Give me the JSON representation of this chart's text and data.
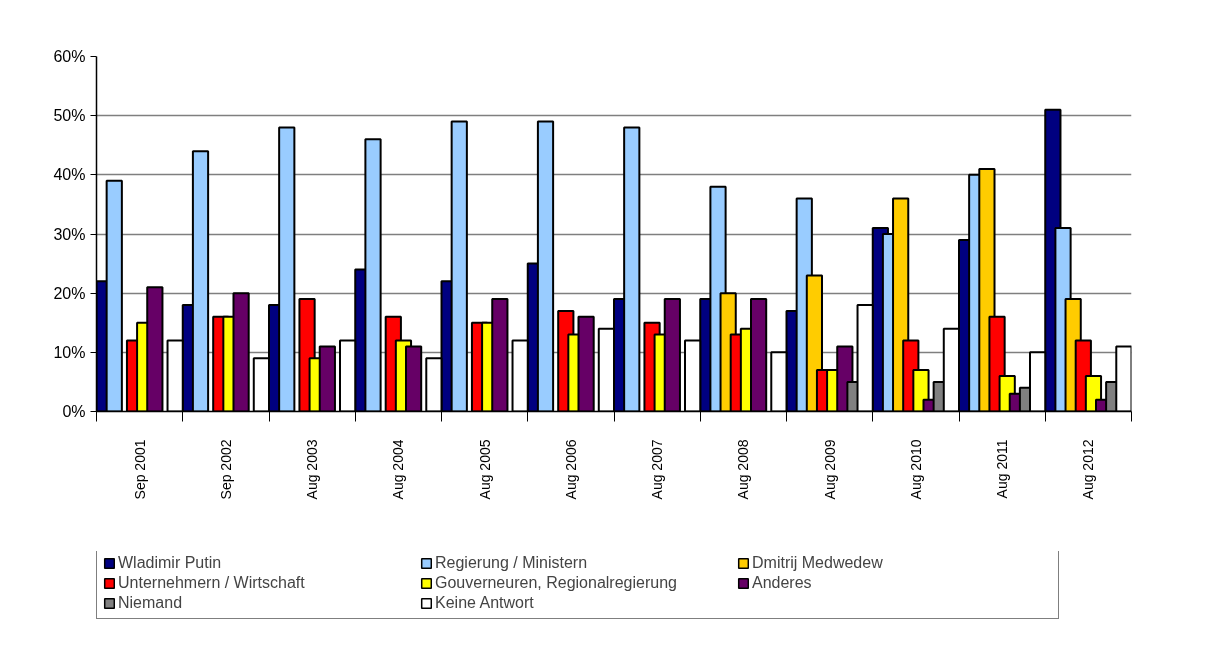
{
  "chart_data": {
    "type": "bar",
    "categories": [
      "Sep 2001",
      "Sep 2002",
      "Aug 2003",
      "Aug 2004",
      "Aug 2005",
      "Aug 2006",
      "Aug 2007",
      "Aug 2008",
      "Aug 2009",
      "Aug 2010",
      "Aug 2011",
      "Aug 2012"
    ],
    "series": [
      {
        "name": "Wladimir Putin",
        "color": "#000080",
        "values": [
          22,
          18,
          18,
          24,
          22,
          25,
          19,
          19,
          17,
          31,
          29,
          51
        ]
      },
      {
        "name": "Regierung / Ministern",
        "color": "#99ccff",
        "values": [
          39,
          44,
          48,
          46,
          49,
          49,
          48,
          38,
          36,
          30,
          40,
          31
        ]
      },
      {
        "name": "Dmitrij Medwedew",
        "color": "#ffcc00",
        "values": [
          null,
          null,
          null,
          null,
          null,
          null,
          null,
          20,
          23,
          36,
          41,
          19
        ]
      },
      {
        "name": "Unternehmern / Wirtschaft",
        "color": "#ff0000",
        "values": [
          12,
          16,
          19,
          16,
          15,
          17,
          15,
          13,
          7,
          12,
          16,
          12
        ]
      },
      {
        "name": "Gouverneuren, Regionalregierung",
        "color": "#ffff00",
        "values": [
          15,
          16,
          9,
          12,
          15,
          13,
          13,
          14,
          7,
          7,
          6,
          6
        ]
      },
      {
        "name": "Anderes",
        "color": "#660066",
        "values": [
          21,
          20,
          11,
          11,
          19,
          16,
          19,
          19,
          11,
          2,
          3,
          2
        ]
      },
      {
        "name": "Niemand",
        "color": "#808080",
        "values": [
          null,
          null,
          null,
          null,
          null,
          null,
          null,
          null,
          5,
          5,
          4,
          5
        ]
      },
      {
        "name": "Keine Antwort",
        "color": "#ffffff",
        "values": [
          12,
          9,
          12,
          9,
          12,
          14,
          12,
          10,
          18,
          14,
          10,
          11
        ]
      }
    ],
    "ylim": [
      0,
      60
    ],
    "yticks": [
      {
        "value": 0,
        "label": "0%"
      },
      {
        "value": 10,
        "label": "10%"
      },
      {
        "value": 20,
        "label": "20%"
      },
      {
        "value": 30,
        "label": "30%"
      },
      {
        "value": 40,
        "label": "40%"
      },
      {
        "value": 50,
        "label": "50%"
      },
      {
        "value": 60,
        "label": "60%"
      }
    ],
    "grid": "y",
    "legend": "bottom"
  }
}
